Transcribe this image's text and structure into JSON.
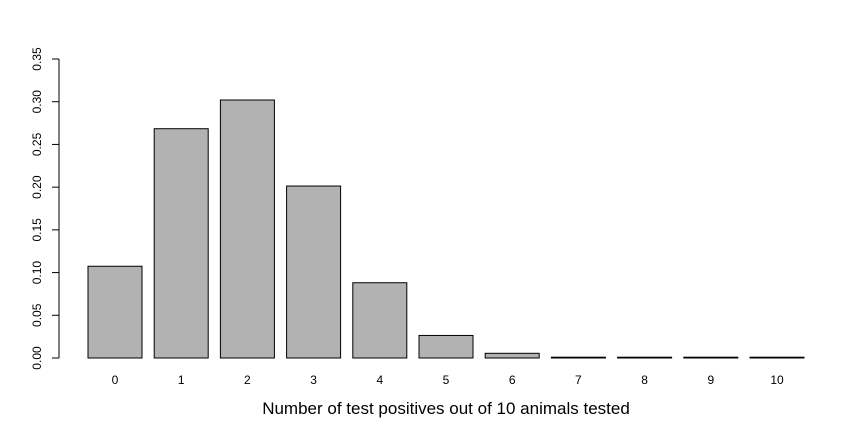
{
  "chart_data": {
    "type": "bar",
    "title": "",
    "xlabel": "Number of test positives out of 10 animals tested",
    "ylabel": "",
    "categories": [
      "0",
      "1",
      "2",
      "3",
      "4",
      "5",
      "6",
      "7",
      "8",
      "9",
      "10"
    ],
    "values": [
      0.1074,
      0.2684,
      0.302,
      0.2013,
      0.0881,
      0.0264,
      0.0055,
      0.0008,
      0.0001,
      0.0,
      0.0
    ],
    "ylim": [
      0,
      0.35
    ],
    "yticks": [
      "0.00",
      "0.05",
      "0.10",
      "0.15",
      "0.20",
      "0.25",
      "0.30",
      "0.35"
    ],
    "bar_color": "#b2b2b2",
    "bar_edge_color": "#000000",
    "grid": false,
    "legend": "none"
  }
}
